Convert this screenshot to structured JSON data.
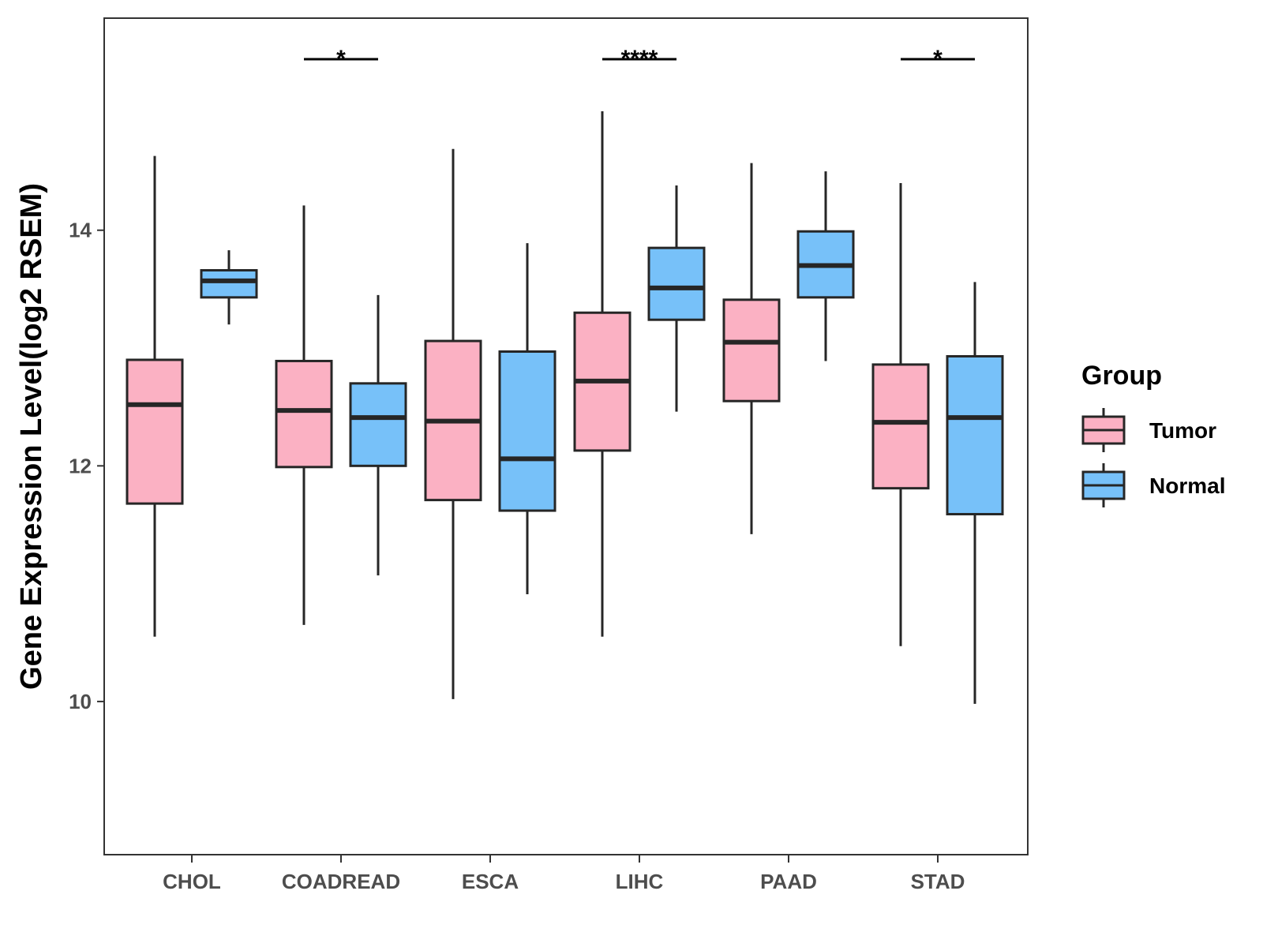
{
  "chart_data": {
    "type": "boxplot",
    "title": "",
    "xlabel": "",
    "ylabel": "Gene Expression Level(log2 RSEM)",
    "ylim": [
      8.7,
      15.8
    ],
    "yticks": [
      10,
      12,
      14
    ],
    "categories": [
      "CHOL",
      "COADREAD",
      "ESCA",
      "LIHC",
      "PAAD",
      "STAD"
    ],
    "legend": {
      "title": "Group",
      "position": "right",
      "entries": [
        {
          "name": "Tumor",
          "color": "#FBB1C3"
        },
        {
          "name": "Normal",
          "color": "#77C1F9"
        }
      ]
    },
    "series": [
      {
        "name": "Tumor",
        "color": "#FBB1C3",
        "boxes": [
          {
            "category": "CHOL",
            "min": 10.55,
            "q1": 11.68,
            "median": 12.52,
            "q3": 12.9,
            "max": 14.63
          },
          {
            "category": "COADREAD",
            "min": 10.65,
            "q1": 11.99,
            "median": 12.47,
            "q3": 12.89,
            "max": 14.21
          },
          {
            "category": "ESCA",
            "min": 10.02,
            "q1": 11.71,
            "median": 12.38,
            "q3": 13.06,
            "max": 14.69
          },
          {
            "category": "LIHC",
            "min": 10.55,
            "q1": 12.13,
            "median": 12.72,
            "q3": 13.3,
            "max": 15.01
          },
          {
            "category": "PAAD",
            "min": 11.42,
            "q1": 12.55,
            "median": 13.05,
            "q3": 13.41,
            "max": 14.57
          },
          {
            "category": "STAD",
            "min": 10.47,
            "q1": 11.81,
            "median": 12.37,
            "q3": 12.86,
            "max": 14.4
          }
        ]
      },
      {
        "name": "Normal",
        "color": "#77C1F9",
        "boxes": [
          {
            "category": "CHOL",
            "min": 13.2,
            "q1": 13.43,
            "median": 13.57,
            "q3": 13.66,
            "max": 13.83
          },
          {
            "category": "COADREAD",
            "min": 11.07,
            "q1": 12.0,
            "median": 12.41,
            "q3": 12.7,
            "max": 13.45
          },
          {
            "category": "ESCA",
            "min": 10.91,
            "q1": 11.62,
            "median": 12.06,
            "q3": 12.97,
            "max": 13.89
          },
          {
            "category": "LIHC",
            "min": 12.46,
            "q1": 13.24,
            "median": 13.51,
            "q3": 13.85,
            "max": 14.38
          },
          {
            "category": "PAAD",
            "min": 12.89,
            "q1": 13.43,
            "median": 13.7,
            "q3": 13.99,
            "max": 14.5
          },
          {
            "category": "STAD",
            "min": 9.98,
            "q1": 11.59,
            "median": 12.41,
            "q3": 12.93,
            "max": 13.56
          }
        ]
      }
    ],
    "significance": [
      {
        "category": "COADREAD",
        "label": "*"
      },
      {
        "category": "LIHC",
        "label": "****"
      },
      {
        "category": "STAD",
        "label": "*"
      }
    ]
  }
}
